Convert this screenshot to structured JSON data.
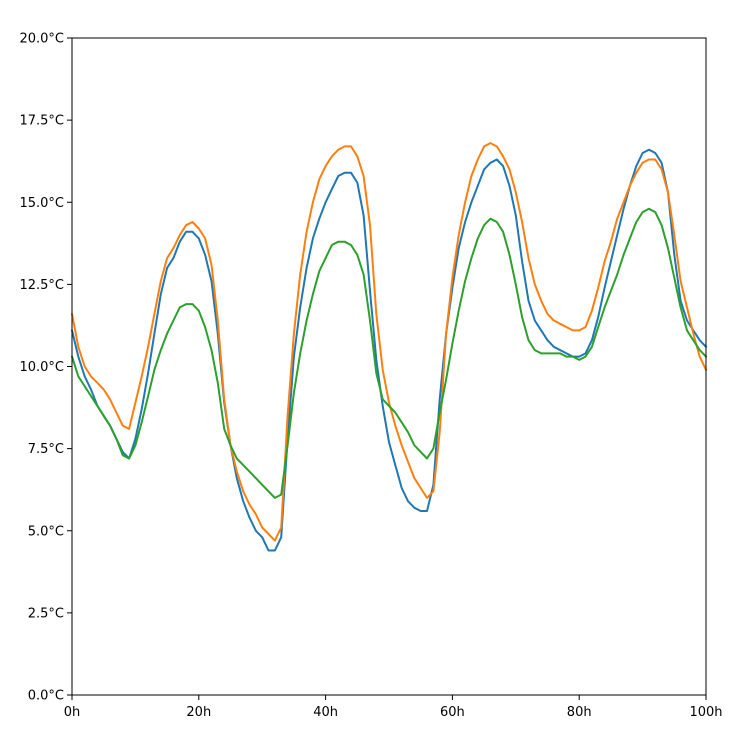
{
  "chart_data": {
    "type": "line",
    "title": "",
    "xlabel": "",
    "ylabel": "",
    "xlim": [
      0,
      100
    ],
    "ylim": [
      0,
      20
    ],
    "grid": false,
    "x_ticks": [
      0,
      20,
      40,
      60,
      80,
      100
    ],
    "x_tick_labels": [
      "0h",
      "20h",
      "40h",
      "60h",
      "80h",
      "100h"
    ],
    "y_ticks": [
      0,
      2.5,
      5,
      7.5,
      10,
      12.5,
      15,
      17.5,
      20
    ],
    "y_tick_labels": [
      "0.0°C",
      "2.5°C",
      "5.0°C",
      "7.5°C",
      "10.0°C",
      "12.5°C",
      "15.0°C",
      "17.5°C",
      "20.0°C"
    ],
    "series": [
      {
        "color": "#1f77b4",
        "points": [
          [
            0,
            11.1
          ],
          [
            1,
            10.3
          ],
          [
            2,
            9.7
          ],
          [
            3,
            9.3
          ],
          [
            4,
            8.8
          ],
          [
            5,
            8.5
          ],
          [
            6,
            8.2
          ],
          [
            7,
            7.8
          ],
          [
            8,
            7.4
          ],
          [
            9,
            7.2
          ],
          [
            10,
            7.8
          ],
          [
            11,
            8.7
          ],
          [
            12,
            9.8
          ],
          [
            13,
            11.0
          ],
          [
            14,
            12.2
          ],
          [
            15,
            13.0
          ],
          [
            16,
            13.3
          ],
          [
            17,
            13.8
          ],
          [
            18,
            14.1
          ],
          [
            19,
            14.1
          ],
          [
            20,
            13.9
          ],
          [
            21,
            13.4
          ],
          [
            22,
            12.6
          ],
          [
            23,
            11.0
          ],
          [
            24,
            8.9
          ],
          [
            25,
            7.6
          ],
          [
            26,
            6.6
          ],
          [
            27,
            5.9
          ],
          [
            28,
            5.4
          ],
          [
            29,
            5.0
          ],
          [
            30,
            4.8
          ],
          [
            31,
            4.4
          ],
          [
            32,
            4.4
          ],
          [
            33,
            4.8
          ],
          [
            34,
            7.8
          ],
          [
            35,
            10.3
          ],
          [
            36,
            11.8
          ],
          [
            37,
            13.0
          ],
          [
            38,
            13.9
          ],
          [
            39,
            14.5
          ],
          [
            40,
            15.0
          ],
          [
            41,
            15.4
          ],
          [
            42,
            15.8
          ],
          [
            43,
            15.9
          ],
          [
            44,
            15.9
          ],
          [
            45,
            15.6
          ],
          [
            46,
            14.6
          ],
          [
            47,
            12.3
          ],
          [
            48,
            10.2
          ],
          [
            49,
            8.8
          ],
          [
            50,
            7.7
          ],
          [
            51,
            7.0
          ],
          [
            52,
            6.3
          ],
          [
            53,
            5.9
          ],
          [
            54,
            5.7
          ],
          [
            55,
            5.6
          ],
          [
            56,
            5.6
          ],
          [
            57,
            6.4
          ],
          [
            58,
            9.0
          ],
          [
            59,
            11.0
          ],
          [
            60,
            12.4
          ],
          [
            61,
            13.6
          ],
          [
            62,
            14.4
          ],
          [
            63,
            15.0
          ],
          [
            64,
            15.5
          ],
          [
            65,
            16.0
          ],
          [
            66,
            16.2
          ],
          [
            67,
            16.3
          ],
          [
            68,
            16.1
          ],
          [
            69,
            15.5
          ],
          [
            70,
            14.6
          ],
          [
            71,
            13.2
          ],
          [
            72,
            12.0
          ],
          [
            73,
            11.4
          ],
          [
            74,
            11.1
          ],
          [
            75,
            10.8
          ],
          [
            76,
            10.6
          ],
          [
            77,
            10.5
          ],
          [
            78,
            10.4
          ],
          [
            79,
            10.3
          ],
          [
            80,
            10.3
          ],
          [
            81,
            10.4
          ],
          [
            82,
            10.8
          ],
          [
            83,
            11.5
          ],
          [
            84,
            12.4
          ],
          [
            85,
            13.2
          ],
          [
            86,
            14.0
          ],
          [
            87,
            14.8
          ],
          [
            88,
            15.5
          ],
          [
            89,
            16.1
          ],
          [
            90,
            16.5
          ],
          [
            91,
            16.6
          ],
          [
            92,
            16.5
          ],
          [
            93,
            16.2
          ],
          [
            94,
            15.3
          ],
          [
            95,
            13.4
          ],
          [
            96,
            12.0
          ],
          [
            97,
            11.4
          ],
          [
            98,
            11.1
          ],
          [
            99,
            10.8
          ],
          [
            100,
            10.6
          ]
        ]
      },
      {
        "color": "#ff7f0e",
        "points": [
          [
            0,
            11.6
          ],
          [
            1,
            10.6
          ],
          [
            2,
            10.0
          ],
          [
            3,
            9.7
          ],
          [
            4,
            9.5
          ],
          [
            5,
            9.3
          ],
          [
            6,
            9.0
          ],
          [
            7,
            8.6
          ],
          [
            8,
            8.2
          ],
          [
            9,
            8.1
          ],
          [
            10,
            8.9
          ],
          [
            11,
            9.7
          ],
          [
            12,
            10.6
          ],
          [
            13,
            11.6
          ],
          [
            14,
            12.6
          ],
          [
            15,
            13.3
          ],
          [
            16,
            13.6
          ],
          [
            17,
            14.0
          ],
          [
            18,
            14.3
          ],
          [
            19,
            14.4
          ],
          [
            20,
            14.2
          ],
          [
            21,
            13.9
          ],
          [
            22,
            13.1
          ],
          [
            23,
            11.4
          ],
          [
            24,
            9.0
          ],
          [
            25,
            7.6
          ],
          [
            26,
            6.8
          ],
          [
            27,
            6.2
          ],
          [
            28,
            5.8
          ],
          [
            29,
            5.5
          ],
          [
            30,
            5.1
          ],
          [
            31,
            4.9
          ],
          [
            32,
            4.7
          ],
          [
            33,
            5.1
          ],
          [
            34,
            8.5
          ],
          [
            35,
            11.0
          ],
          [
            36,
            12.8
          ],
          [
            37,
            14.1
          ],
          [
            38,
            15.0
          ],
          [
            39,
            15.7
          ],
          [
            40,
            16.1
          ],
          [
            41,
            16.4
          ],
          [
            42,
            16.6
          ],
          [
            43,
            16.7
          ],
          [
            44,
            16.7
          ],
          [
            45,
            16.4
          ],
          [
            46,
            15.8
          ],
          [
            47,
            14.3
          ],
          [
            48,
            11.6
          ],
          [
            49,
            9.9
          ],
          [
            50,
            8.9
          ],
          [
            51,
            8.2
          ],
          [
            52,
            7.6
          ],
          [
            53,
            7.1
          ],
          [
            54,
            6.6
          ],
          [
            55,
            6.3
          ],
          [
            56,
            6.0
          ],
          [
            57,
            6.2
          ],
          [
            58,
            8.0
          ],
          [
            59,
            11.0
          ],
          [
            60,
            12.7
          ],
          [
            61,
            14.0
          ],
          [
            62,
            15.0
          ],
          [
            63,
            15.8
          ],
          [
            64,
            16.3
          ],
          [
            65,
            16.7
          ],
          [
            66,
            16.8
          ],
          [
            67,
            16.7
          ],
          [
            68,
            16.4
          ],
          [
            69,
            16.0
          ],
          [
            70,
            15.3
          ],
          [
            71,
            14.4
          ],
          [
            72,
            13.3
          ],
          [
            73,
            12.5
          ],
          [
            74,
            12.0
          ],
          [
            75,
            11.6
          ],
          [
            76,
            11.4
          ],
          [
            77,
            11.3
          ],
          [
            78,
            11.2
          ],
          [
            79,
            11.1
          ],
          [
            80,
            11.1
          ],
          [
            81,
            11.2
          ],
          [
            82,
            11.7
          ],
          [
            83,
            12.4
          ],
          [
            84,
            13.2
          ],
          [
            85,
            13.8
          ],
          [
            86,
            14.5
          ],
          [
            87,
            15.0
          ],
          [
            88,
            15.5
          ],
          [
            89,
            15.9
          ],
          [
            90,
            16.2
          ],
          [
            91,
            16.3
          ],
          [
            92,
            16.3
          ],
          [
            93,
            16.0
          ],
          [
            94,
            15.3
          ],
          [
            95,
            14.0
          ],
          [
            96,
            12.6
          ],
          [
            97,
            11.8
          ],
          [
            98,
            11.0
          ],
          [
            99,
            10.3
          ],
          [
            100,
            9.9
          ]
        ]
      },
      {
        "color": "#2ca02c",
        "points": [
          [
            0,
            10.3
          ],
          [
            1,
            9.7
          ],
          [
            2,
            9.4
          ],
          [
            3,
            9.1
          ],
          [
            4,
            8.8
          ],
          [
            5,
            8.5
          ],
          [
            6,
            8.2
          ],
          [
            7,
            7.8
          ],
          [
            8,
            7.3
          ],
          [
            9,
            7.2
          ],
          [
            10,
            7.6
          ],
          [
            11,
            8.3
          ],
          [
            12,
            9.1
          ],
          [
            13,
            9.9
          ],
          [
            14,
            10.5
          ],
          [
            15,
            11.0
          ],
          [
            16,
            11.4
          ],
          [
            17,
            11.8
          ],
          [
            18,
            11.9
          ],
          [
            19,
            11.9
          ],
          [
            20,
            11.7
          ],
          [
            21,
            11.2
          ],
          [
            22,
            10.5
          ],
          [
            23,
            9.5
          ],
          [
            24,
            8.1
          ],
          [
            25,
            7.6
          ],
          [
            26,
            7.2
          ],
          [
            27,
            7.0
          ],
          [
            28,
            6.8
          ],
          [
            29,
            6.6
          ],
          [
            30,
            6.4
          ],
          [
            31,
            6.2
          ],
          [
            32,
            6.0
          ],
          [
            33,
            6.1
          ],
          [
            34,
            7.6
          ],
          [
            35,
            9.2
          ],
          [
            36,
            10.4
          ],
          [
            37,
            11.4
          ],
          [
            38,
            12.2
          ],
          [
            39,
            12.9
          ],
          [
            40,
            13.3
          ],
          [
            41,
            13.7
          ],
          [
            42,
            13.8
          ],
          [
            43,
            13.8
          ],
          [
            44,
            13.7
          ],
          [
            45,
            13.4
          ],
          [
            46,
            12.8
          ],
          [
            47,
            11.4
          ],
          [
            48,
            9.8
          ],
          [
            49,
            9.0
          ],
          [
            50,
            8.8
          ],
          [
            51,
            8.6
          ],
          [
            52,
            8.3
          ],
          [
            53,
            8.0
          ],
          [
            54,
            7.6
          ],
          [
            55,
            7.4
          ],
          [
            56,
            7.2
          ],
          [
            57,
            7.5
          ],
          [
            58,
            8.6
          ],
          [
            59,
            9.6
          ],
          [
            60,
            10.7
          ],
          [
            61,
            11.7
          ],
          [
            62,
            12.6
          ],
          [
            63,
            13.3
          ],
          [
            64,
            13.9
          ],
          [
            65,
            14.3
          ],
          [
            66,
            14.5
          ],
          [
            67,
            14.4
          ],
          [
            68,
            14.1
          ],
          [
            69,
            13.4
          ],
          [
            70,
            12.5
          ],
          [
            71,
            11.5
          ],
          [
            72,
            10.8
          ],
          [
            73,
            10.5
          ],
          [
            74,
            10.4
          ],
          [
            75,
            10.4
          ],
          [
            76,
            10.4
          ],
          [
            77,
            10.4
          ],
          [
            78,
            10.3
          ],
          [
            79,
            10.3
          ],
          [
            80,
            10.2
          ],
          [
            81,
            10.3
          ],
          [
            82,
            10.6
          ],
          [
            83,
            11.2
          ],
          [
            84,
            11.8
          ],
          [
            85,
            12.3
          ],
          [
            86,
            12.8
          ],
          [
            87,
            13.4
          ],
          [
            88,
            13.9
          ],
          [
            89,
            14.4
          ],
          [
            90,
            14.7
          ],
          [
            91,
            14.8
          ],
          [
            92,
            14.7
          ],
          [
            93,
            14.3
          ],
          [
            94,
            13.6
          ],
          [
            95,
            12.7
          ],
          [
            96,
            11.8
          ],
          [
            97,
            11.1
          ],
          [
            98,
            10.8
          ],
          [
            99,
            10.5
          ],
          [
            100,
            10.3
          ]
        ]
      }
    ]
  }
}
